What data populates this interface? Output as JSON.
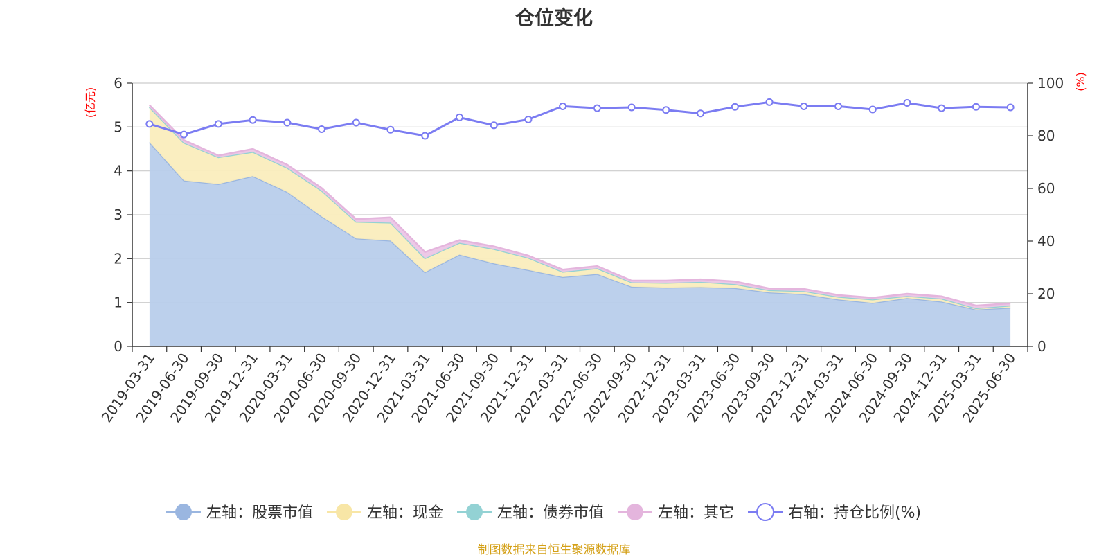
{
  "title": "仓位变化",
  "source_note": "制图数据来自恒生聚源数据库",
  "chart_data": {
    "type": "area",
    "title": "仓位变化",
    "left_axis": {
      "unit": "(亿元)",
      "range": [
        0,
        6
      ],
      "ticks": [
        "0",
        "1",
        "2",
        "3",
        "4",
        "5",
        "6"
      ]
    },
    "right_axis": {
      "unit": "(%)",
      "range": [
        0,
        100
      ],
      "ticks": [
        "0",
        "20",
        "40",
        "60",
        "80",
        "100"
      ]
    },
    "grid": true,
    "legend_position": "bottom",
    "categories": [
      "2019-03-31",
      "2019-06-30",
      "2019-09-30",
      "2019-12-31",
      "2020-03-31",
      "2020-06-30",
      "2020-09-30",
      "2020-12-31",
      "2021-03-31",
      "2021-06-30",
      "2021-09-30",
      "2021-12-31",
      "2022-03-31",
      "2022-06-30",
      "2022-09-30",
      "2022-12-31",
      "2023-03-31",
      "2023-06-30",
      "2023-09-30",
      "2023-12-31",
      "2024-03-31",
      "2024-06-30",
      "2024-09-30",
      "2024-12-31",
      "2025-03-31",
      "2025-06-30"
    ],
    "series": [
      {
        "name": "左轴：股票市值",
        "axis": "left",
        "stacked": true,
        "color": "#9ab6e0",
        "fill": "#b8cdeb",
        "values": [
          4.65,
          3.78,
          3.7,
          3.88,
          3.52,
          2.96,
          2.46,
          2.41,
          1.69,
          2.09,
          1.89,
          1.74,
          1.58,
          1.65,
          1.36,
          1.34,
          1.35,
          1.33,
          1.23,
          1.19,
          1.07,
          0.99,
          1.1,
          1.02,
          0.84,
          0.88
        ]
      },
      {
        "name": "左轴：现金",
        "axis": "left",
        "stacked": true,
        "color": "#f8e6a6",
        "fill": "#faedbd",
        "values": [
          0.8,
          0.86,
          0.61,
          0.55,
          0.55,
          0.59,
          0.38,
          0.41,
          0.32,
          0.27,
          0.33,
          0.28,
          0.12,
          0.13,
          0.1,
          0.11,
          0.12,
          0.09,
          0.05,
          0.07,
          0.06,
          0.08,
          0.05,
          0.07,
          0.03,
          0.05
        ]
      },
      {
        "name": "左轴：债券市值",
        "axis": "left",
        "stacked": true,
        "color": "#93d2d4",
        "fill": "#a8dcdc",
        "values": [
          0,
          0,
          0,
          0,
          0,
          0,
          0,
          0,
          0,
          0,
          0,
          0,
          0,
          0,
          0,
          0,
          0,
          0,
          0,
          0,
          0,
          0,
          0,
          0,
          0,
          0
        ]
      },
      {
        "name": "左轴：其它",
        "axis": "left",
        "stacked": true,
        "color": "#e4b5dd",
        "fill": "#ecc6e6",
        "values": [
          0.05,
          0.06,
          0.04,
          0.07,
          0.07,
          0.06,
          0.06,
          0.12,
          0.14,
          0.06,
          0.06,
          0.05,
          0.05,
          0.05,
          0.04,
          0.05,
          0.06,
          0.06,
          0.04,
          0.05,
          0.04,
          0.04,
          0.05,
          0.05,
          0.06,
          0.05
        ]
      },
      {
        "name": "右轴：持仓比例(%)",
        "axis": "right",
        "stacked": false,
        "color": "#7b7cf2",
        "values": [
          84.5,
          80.5,
          84.5,
          86.0,
          85.0,
          82.5,
          85.0,
          82.3,
          80.0,
          87.0,
          84.0,
          86.2,
          91.2,
          90.5,
          90.8,
          89.8,
          88.5,
          91.0,
          92.8,
          91.2,
          91.2,
          90.0,
          92.5,
          90.5,
          91.0,
          90.8
        ]
      }
    ]
  }
}
